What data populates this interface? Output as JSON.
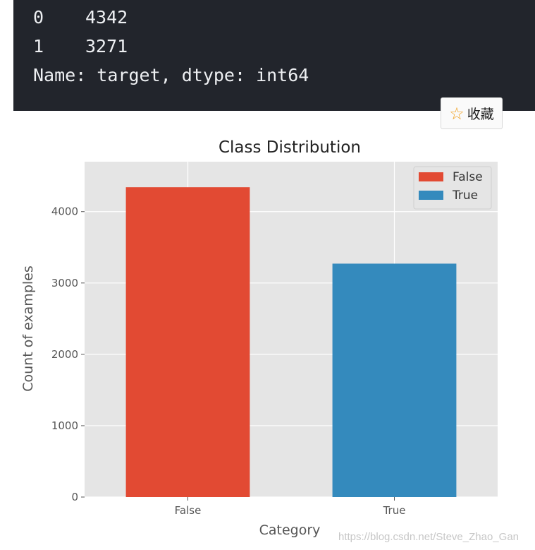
{
  "console": {
    "lines": [
      {
        "index": "0",
        "value": "4342"
      },
      {
        "index": "1",
        "value": "3271"
      }
    ],
    "footer": "Name: target, dtype: int64"
  },
  "favorite_button": {
    "icon": "star-icon",
    "label": "收藏"
  },
  "chart_data": {
    "type": "bar",
    "title": "Class Distribution",
    "xlabel": "Category",
    "ylabel": "Count of examples",
    "categories": [
      "False",
      "True"
    ],
    "values": [
      4342,
      3271
    ],
    "colors": [
      "#e24a33",
      "#348abd"
    ],
    "ylim": [
      0,
      4700
    ],
    "yticks": [
      0,
      1000,
      2000,
      3000,
      4000
    ],
    "ytick_labels": [
      "0",
      "1000",
      "2000",
      "3000",
      "4000"
    ],
    "grid": true,
    "legend": {
      "placement": "top-right",
      "entries": [
        "False",
        "True"
      ]
    },
    "background": "#e5e5e5"
  },
  "watermark": "https://blog.csdn.net/Steve_Zhao_Gan"
}
